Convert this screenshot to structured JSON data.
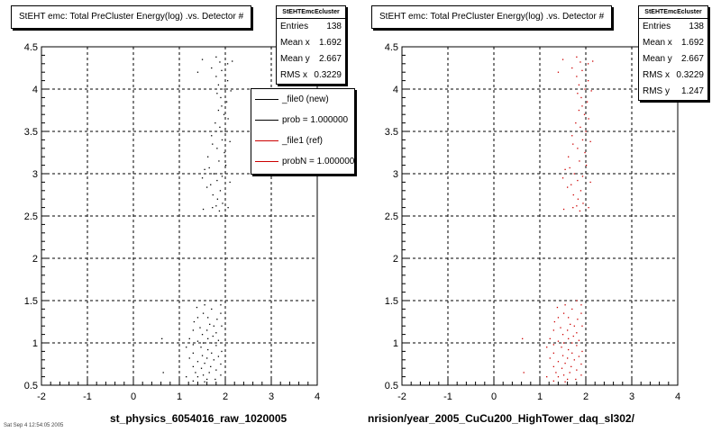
{
  "footer_text": "Sat Sep 4 12:54:05 2005",
  "chart_data": [
    {
      "type": "scatter",
      "title": "StEHT emc: Total PreCluster Energy(log) .vs. Detector #",
      "xlabel": "st_physics_6054016_raw_1020005",
      "ylabel": "",
      "xlim": [
        -2,
        4
      ],
      "ylim": [
        0.5,
        4.5
      ],
      "grid": true,
      "point_color": "#000000",
      "x_ticks": [
        "-2",
        "-1",
        "0",
        "1",
        "2",
        "3",
        "4"
      ],
      "y_ticks": [
        "0.5",
        "1",
        "1.5",
        "2",
        "2.5",
        "3",
        "3.5",
        "4",
        "4.5"
      ],
      "stats": {
        "name": "StEHTEmcEcluster",
        "rows": [
          {
            "label": "Entries",
            "value": "138"
          },
          {
            "label": "Mean x",
            "value": "1.692"
          },
          {
            "label": "Mean y",
            "value": "2.667"
          },
          {
            "label": "RMS x",
            "value": "0.3229"
          }
        ]
      },
      "legend": [
        {
          "label": "_file0 (new)",
          "color": "#000000"
        },
        {
          "label": "prob = 1.000000",
          "color": "#000000"
        },
        {
          "label": "_file1 (ref)",
          "color": "#cc0000"
        },
        {
          "label": "probN = 1.000000",
          "color": "#cc0000"
        }
      ],
      "points": [
        [
          1.5,
          4.35
        ],
        [
          1.8,
          4.38
        ],
        [
          1.88,
          4.32
        ],
        [
          2.05,
          4.3
        ],
        [
          2.15,
          4.33
        ],
        [
          1.7,
          4.25
        ],
        [
          1.92,
          4.22
        ],
        [
          1.4,
          4.2
        ],
        [
          1.8,
          4.15
        ],
        [
          2.05,
          4.1
        ],
        [
          1.85,
          4.05
        ],
        [
          1.98,
          4.0
        ],
        [
          2.12,
          3.98
        ],
        [
          1.82,
          3.95
        ],
        [
          1.9,
          3.9
        ],
        [
          2.03,
          3.85
        ],
        [
          1.92,
          3.8
        ],
        [
          1.85,
          3.75
        ],
        [
          1.97,
          3.7
        ],
        [
          2.06,
          3.65
        ],
        [
          1.78,
          3.6
        ],
        [
          1.88,
          3.55
        ],
        [
          2.0,
          3.5
        ],
        [
          1.7,
          3.45
        ],
        [
          1.93,
          3.4
        ],
        [
          2.1,
          3.38
        ],
        [
          1.72,
          3.35
        ],
        [
          1.82,
          3.3
        ],
        [
          1.98,
          3.25
        ],
        [
          1.62,
          3.2
        ],
        [
          1.86,
          3.15
        ],
        [
          2.01,
          3.1
        ],
        [
          1.65,
          3.07
        ],
        [
          1.55,
          3.05
        ],
        [
          1.75,
          3.0
        ],
        [
          1.93,
          2.97
        ],
        [
          1.5,
          2.95
        ],
        [
          1.82,
          2.92
        ],
        [
          2.1,
          2.9
        ],
        [
          1.68,
          2.87
        ],
        [
          1.6,
          2.84
        ],
        [
          1.89,
          2.8
        ],
        [
          1.73,
          2.75
        ],
        [
          1.83,
          2.7
        ],
        [
          1.94,
          2.65
        ],
        [
          1.8,
          2.62
        ],
        [
          1.72,
          2.6
        ],
        [
          2.06,
          2.6
        ],
        [
          1.52,
          2.58
        ],
        [
          1.87,
          2.56
        ],
        [
          1.8,
          1.5
        ],
        [
          1.55,
          1.45
        ],
        [
          1.9,
          1.45
        ],
        [
          1.38,
          1.42
        ],
        [
          1.7,
          1.4
        ],
        [
          1.52,
          1.35
        ],
        [
          1.9,
          1.35
        ],
        [
          1.4,
          1.3
        ],
        [
          1.62,
          1.3
        ],
        [
          1.82,
          1.28
        ],
        [
          1.32,
          1.25
        ],
        [
          1.66,
          1.22
        ],
        [
          1.75,
          1.2
        ],
        [
          1.92,
          1.2
        ],
        [
          1.45,
          1.18
        ],
        [
          1.3,
          1.15
        ],
        [
          1.6,
          1.15
        ],
        [
          1.8,
          1.12
        ],
        [
          1.5,
          1.1
        ],
        [
          1.73,
          1.08
        ],
        [
          1.22,
          1.05
        ],
        [
          1.62,
          1.05
        ],
        [
          1.85,
          1.03
        ],
        [
          1.4,
          1.02
        ],
        [
          1.52,
          1.0
        ],
        [
          1.7,
          1.0
        ],
        [
          1.3,
          0.98
        ],
        [
          1.8,
          0.97
        ],
        [
          1.15,
          0.95
        ],
        [
          1.47,
          0.95
        ],
        [
          1.62,
          0.92
        ],
        [
          1.92,
          0.9
        ],
        [
          1.3,
          0.88
        ],
        [
          1.7,
          0.88
        ],
        [
          1.5,
          0.85
        ],
        [
          1.85,
          0.84
        ],
        [
          1.22,
          0.82
        ],
        [
          1.6,
          0.82
        ],
        [
          1.75,
          0.8
        ],
        [
          1.4,
          0.78
        ],
        [
          1.55,
          0.76
        ],
        [
          1.9,
          0.75
        ],
        [
          1.3,
          0.72
        ],
        [
          1.68,
          0.72
        ],
        [
          1.48,
          0.7
        ],
        [
          1.8,
          0.68
        ],
        [
          1.35,
          0.65
        ],
        [
          1.65,
          0.65
        ],
        [
          1.52,
          0.62
        ],
        [
          1.9,
          0.62
        ],
        [
          1.15,
          0.6
        ],
        [
          1.4,
          0.6
        ],
        [
          1.6,
          0.57
        ],
        [
          1.78,
          0.57
        ],
        [
          1.3,
          0.55
        ],
        [
          1.55,
          0.54
        ],
        [
          0.65,
          0.65
        ],
        [
          0.62,
          1.05
        ]
      ]
    },
    {
      "type": "scatter",
      "title": "StEHT emc: Total PreCluster Energy(log) .vs. Detector #",
      "xlabel": "nrision/year_2005_CuCu200_HighTower_daq_sl302/",
      "ylabel": "",
      "xlim": [
        -2,
        4
      ],
      "ylim": [
        0.5,
        4.5
      ],
      "grid": true,
      "point_color": "#cc0000",
      "x_ticks": [
        "-2",
        "-1",
        "0",
        "1",
        "2",
        "3",
        "4"
      ],
      "y_ticks": [
        "0.5",
        "1",
        "1.5",
        "2",
        "2.5",
        "3",
        "3.5",
        "4",
        "4.5"
      ],
      "stats": {
        "name": "StEHTEmcEcluster",
        "rows": [
          {
            "label": "Entries",
            "value": "138"
          },
          {
            "label": "Mean x",
            "value": "1.692"
          },
          {
            "label": "Mean y",
            "value": "2.667"
          },
          {
            "label": "RMS x",
            "value": "0.3229"
          },
          {
            "label": "RMS y",
            "value": "1.247"
          }
        ]
      },
      "points": [
        [
          1.5,
          4.35
        ],
        [
          1.8,
          4.38
        ],
        [
          1.88,
          4.32
        ],
        [
          2.05,
          4.3
        ],
        [
          2.15,
          4.33
        ],
        [
          1.7,
          4.25
        ],
        [
          1.92,
          4.22
        ],
        [
          1.4,
          4.2
        ],
        [
          1.8,
          4.15
        ],
        [
          2.05,
          4.1
        ],
        [
          1.85,
          4.05
        ],
        [
          1.98,
          4.0
        ],
        [
          2.12,
          3.98
        ],
        [
          1.82,
          3.95
        ],
        [
          1.9,
          3.9
        ],
        [
          2.03,
          3.85
        ],
        [
          1.92,
          3.8
        ],
        [
          1.85,
          3.75
        ],
        [
          1.97,
          3.7
        ],
        [
          2.06,
          3.65
        ],
        [
          1.78,
          3.6
        ],
        [
          1.88,
          3.55
        ],
        [
          2.0,
          3.5
        ],
        [
          1.7,
          3.45
        ],
        [
          1.93,
          3.4
        ],
        [
          2.1,
          3.38
        ],
        [
          1.72,
          3.35
        ],
        [
          1.82,
          3.3
        ],
        [
          1.98,
          3.25
        ],
        [
          1.62,
          3.2
        ],
        [
          1.86,
          3.15
        ],
        [
          2.01,
          3.1
        ],
        [
          1.65,
          3.07
        ],
        [
          1.55,
          3.05
        ],
        [
          1.75,
          3.0
        ],
        [
          1.93,
          2.97
        ],
        [
          1.5,
          2.95
        ],
        [
          1.82,
          2.92
        ],
        [
          2.1,
          2.9
        ],
        [
          1.68,
          2.87
        ],
        [
          1.6,
          2.84
        ],
        [
          1.89,
          2.8
        ],
        [
          1.73,
          2.75
        ],
        [
          1.83,
          2.7
        ],
        [
          1.94,
          2.65
        ],
        [
          1.8,
          2.62
        ],
        [
          1.72,
          2.6
        ],
        [
          2.06,
          2.6
        ],
        [
          1.52,
          2.58
        ],
        [
          1.87,
          2.56
        ],
        [
          1.8,
          1.5
        ],
        [
          1.55,
          1.45
        ],
        [
          1.9,
          1.45
        ],
        [
          1.38,
          1.42
        ],
        [
          1.7,
          1.4
        ],
        [
          1.52,
          1.35
        ],
        [
          1.9,
          1.35
        ],
        [
          1.4,
          1.3
        ],
        [
          1.62,
          1.3
        ],
        [
          1.82,
          1.28
        ],
        [
          1.32,
          1.25
        ],
        [
          1.66,
          1.22
        ],
        [
          1.75,
          1.2
        ],
        [
          1.92,
          1.2
        ],
        [
          1.45,
          1.18
        ],
        [
          1.3,
          1.15
        ],
        [
          1.6,
          1.15
        ],
        [
          1.8,
          1.12
        ],
        [
          1.5,
          1.1
        ],
        [
          1.73,
          1.08
        ],
        [
          1.22,
          1.05
        ],
        [
          1.62,
          1.05
        ],
        [
          1.85,
          1.03
        ],
        [
          1.4,
          1.02
        ],
        [
          1.52,
          1.0
        ],
        [
          1.7,
          1.0
        ],
        [
          1.3,
          0.98
        ],
        [
          1.8,
          0.97
        ],
        [
          1.15,
          0.95
        ],
        [
          1.47,
          0.95
        ],
        [
          1.62,
          0.92
        ],
        [
          1.92,
          0.9
        ],
        [
          1.3,
          0.88
        ],
        [
          1.7,
          0.88
        ],
        [
          1.5,
          0.85
        ],
        [
          1.85,
          0.84
        ],
        [
          1.22,
          0.82
        ],
        [
          1.6,
          0.82
        ],
        [
          1.75,
          0.8
        ],
        [
          1.4,
          0.78
        ],
        [
          1.55,
          0.76
        ],
        [
          1.9,
          0.75
        ],
        [
          1.3,
          0.72
        ],
        [
          1.68,
          0.72
        ],
        [
          1.48,
          0.7
        ],
        [
          1.8,
          0.68
        ],
        [
          1.35,
          0.65
        ],
        [
          1.65,
          0.65
        ],
        [
          1.52,
          0.62
        ],
        [
          1.9,
          0.62
        ],
        [
          1.15,
          0.6
        ],
        [
          1.4,
          0.6
        ],
        [
          1.6,
          0.57
        ],
        [
          1.78,
          0.57
        ],
        [
          1.3,
          0.55
        ],
        [
          1.55,
          0.54
        ],
        [
          0.65,
          0.65
        ],
        [
          0.62,
          1.05
        ]
      ]
    }
  ]
}
